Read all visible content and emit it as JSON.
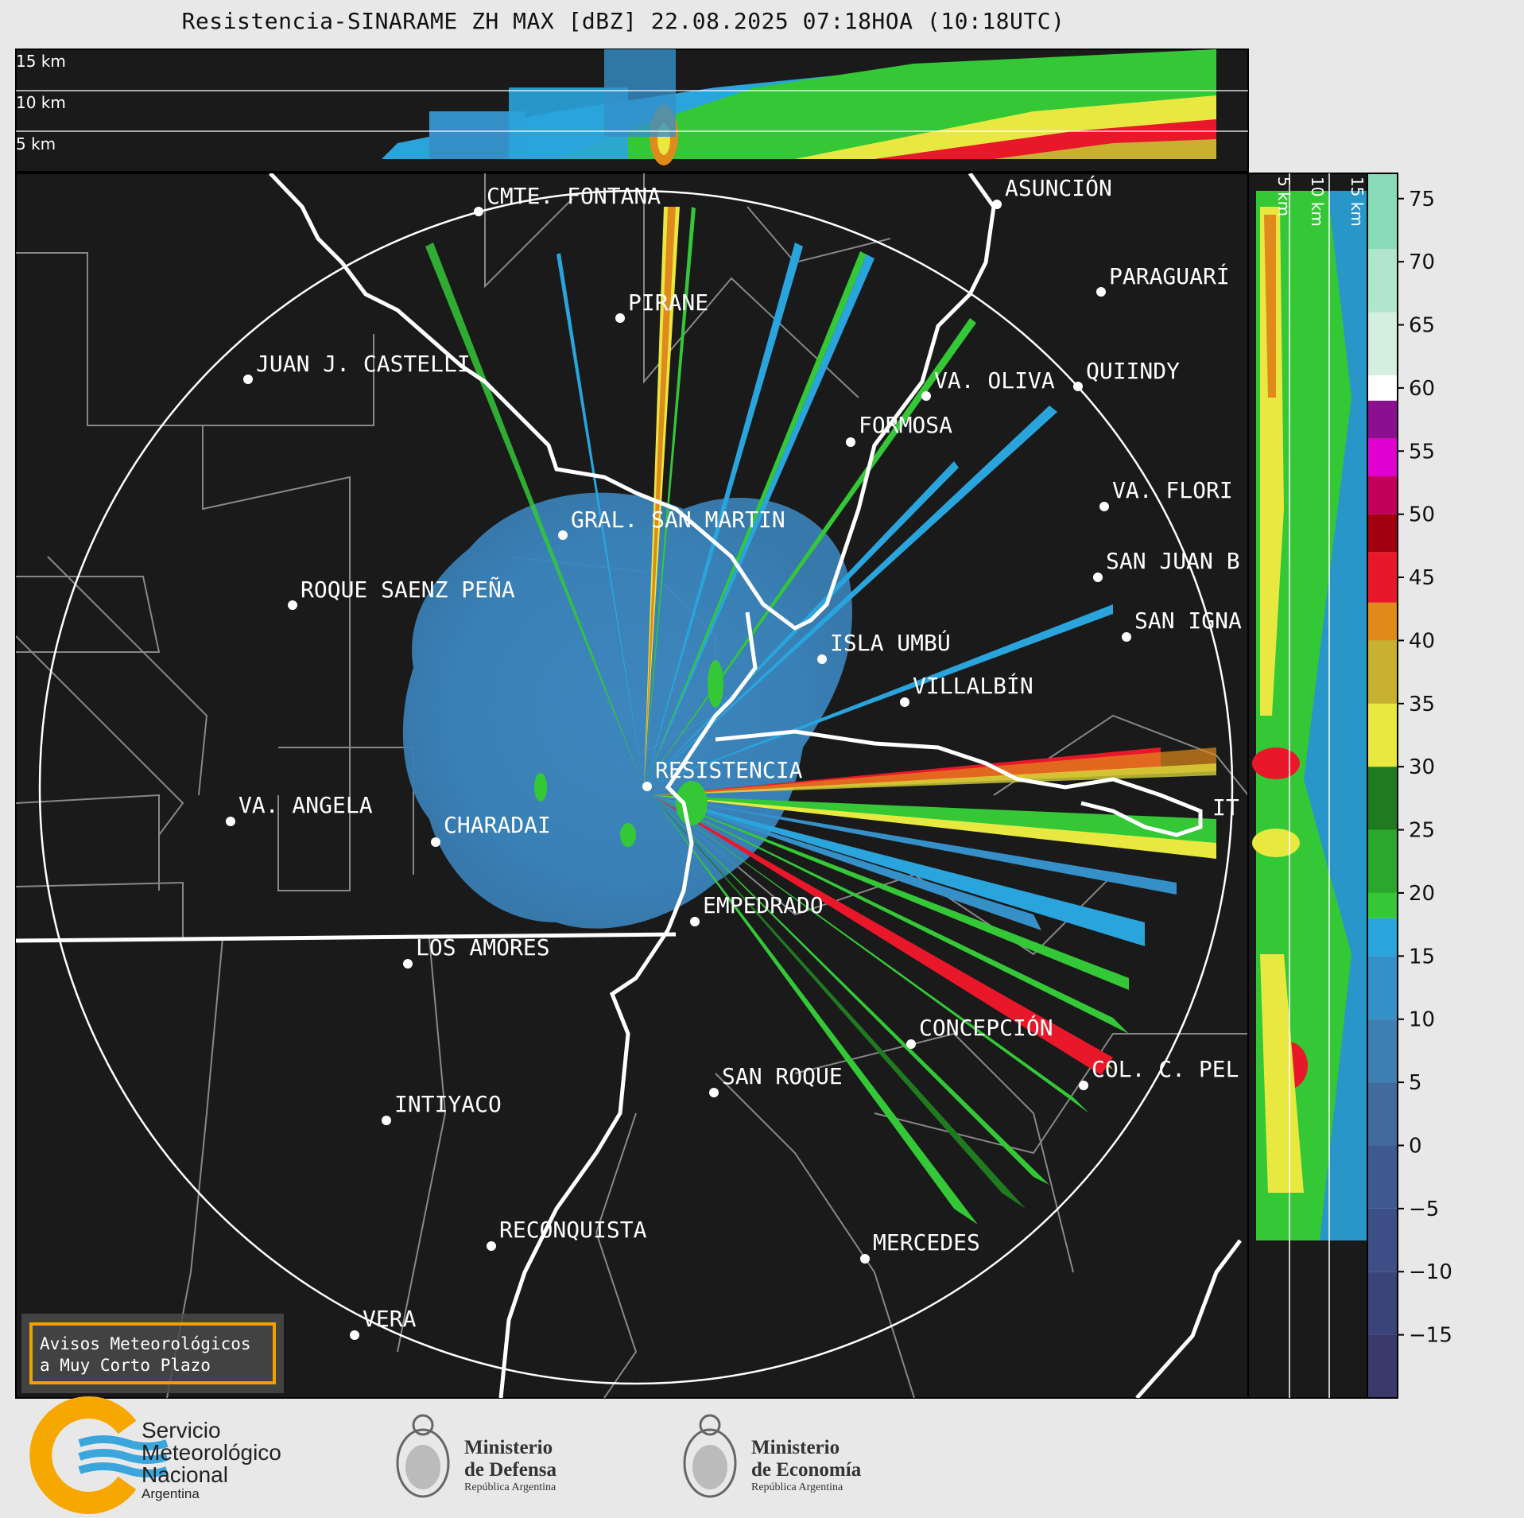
{
  "title": "Resistencia-SINARAME ZH MAX [dBZ] 22.08.2025 07:18HOA (10:18UTC)",
  "top_panel": {
    "height_labels": [
      "15 km",
      "10 km",
      "5 km"
    ]
  },
  "right_panel": {
    "height_labels": [
      "5 km",
      "10 km",
      "15 km"
    ]
  },
  "colorbar": {
    "ticks": [
      "75",
      "70",
      "65",
      "60",
      "55",
      "50",
      "45",
      "40",
      "35",
      "30",
      "25",
      "20",
      "15",
      "10",
      "5",
      "0",
      "−5",
      "−10",
      "−15"
    ],
    "tick_values": [
      75,
      70,
      65,
      60,
      55,
      50,
      45,
      40,
      35,
      30,
      25,
      20,
      15,
      10,
      5,
      0,
      -5,
      -10,
      -15
    ],
    "range": [
      -20,
      77
    ],
    "stops": [
      {
        "from": -20,
        "to": -15,
        "color": "#3a3a6a"
      },
      {
        "from": -15,
        "to": -10,
        "color": "#3b4478"
      },
      {
        "from": -10,
        "to": -5,
        "color": "#3d4f86"
      },
      {
        "from": -5,
        "to": 0,
        "color": "#3f5a90"
      },
      {
        "from": 0,
        "to": 5,
        "color": "#426a9c"
      },
      {
        "from": 5,
        "to": 10,
        "color": "#3f7fb2"
      },
      {
        "from": 10,
        "to": 15,
        "color": "#3590c8"
      },
      {
        "from": 15,
        "to": 18,
        "color": "#2aa4dc"
      },
      {
        "from": 18,
        "to": 20,
        "color": "#34c837"
      },
      {
        "from": 20,
        "to": 25,
        "color": "#2aa82b"
      },
      {
        "from": 25,
        "to": 30,
        "color": "#1f7a20"
      },
      {
        "from": 30,
        "to": 35,
        "color": "#e8e840"
      },
      {
        "from": 35,
        "to": 40,
        "color": "#c8b030"
      },
      {
        "from": 40,
        "to": 43,
        "color": "#e08a1c"
      },
      {
        "from": 43,
        "to": 47,
        "color": "#e8182a"
      },
      {
        "from": 47,
        "to": 50,
        "color": "#a00010"
      },
      {
        "from": 50,
        "to": 53,
        "color": "#c0005a"
      },
      {
        "from": 53,
        "to": 56,
        "color": "#e000d0"
      },
      {
        "from": 56,
        "to": 59,
        "color": "#8a1090"
      },
      {
        "from": 59,
        "to": 61,
        "color": "#ffffff"
      },
      {
        "from": 61,
        "to": 66,
        "color": "#d4eee0"
      },
      {
        "from": 66,
        "to": 71,
        "color": "#b0e6cc"
      },
      {
        "from": 71,
        "to": 77,
        "color": "#88dcb8"
      }
    ]
  },
  "cities": [
    {
      "name": "CMTE. FONTANA"
    },
    {
      "name": "ASUNCIÓN"
    },
    {
      "name": "PIRANE"
    },
    {
      "name": "PARAGUARÍ"
    },
    {
      "name": "JUAN J. CASTELLI"
    },
    {
      "name": "VA. OLIVA"
    },
    {
      "name": "QUIINDY"
    },
    {
      "name": "FORMOSA"
    },
    {
      "name": "VA. FLORI"
    },
    {
      "name": "GRAL. SAN MARTIN"
    },
    {
      "name": "SAN JUAN B"
    },
    {
      "name": "ROQUE SAENZ PEÑA"
    },
    {
      "name": "SAN IGNA"
    },
    {
      "name": "ISLA UMBÚ"
    },
    {
      "name": "VILLALBÍN"
    },
    {
      "name": "RESISTENCIA"
    },
    {
      "name": "IT"
    },
    {
      "name": "VA. ANGELA"
    },
    {
      "name": "CHARADAI"
    },
    {
      "name": "EMPEDRADO"
    },
    {
      "name": "LOS AMORES"
    },
    {
      "name": "CONCEPCIÓN"
    },
    {
      "name": "COL. C. PEL"
    },
    {
      "name": "SAN ROQUE"
    },
    {
      "name": "INTIYACO"
    },
    {
      "name": "RECONQUISTA"
    },
    {
      "name": "MERCEDES"
    },
    {
      "name": "VERA"
    }
  ],
  "warning_box": {
    "line1": "Avisos Meteorológicos",
    "line2": "a Muy Corto Plazo"
  },
  "logos": {
    "smn": {
      "line1": "Servicio",
      "line2": "Meteorológico",
      "line3": "Nacional",
      "line4": "Argentina"
    },
    "defensa": {
      "line1": "Ministerio",
      "line2": "de Defensa",
      "line3": "República Argentina"
    },
    "economia": {
      "line1": "Ministerio",
      "line2": "de Economía",
      "line3": "República Argentina"
    }
  },
  "colors": {
    "map_bg": "#1a1a1a",
    "echo_blue": "#3a8ec4",
    "border_white": "#ffffff",
    "admin_gray": "#888888",
    "warning_orange": "#f0a000"
  }
}
